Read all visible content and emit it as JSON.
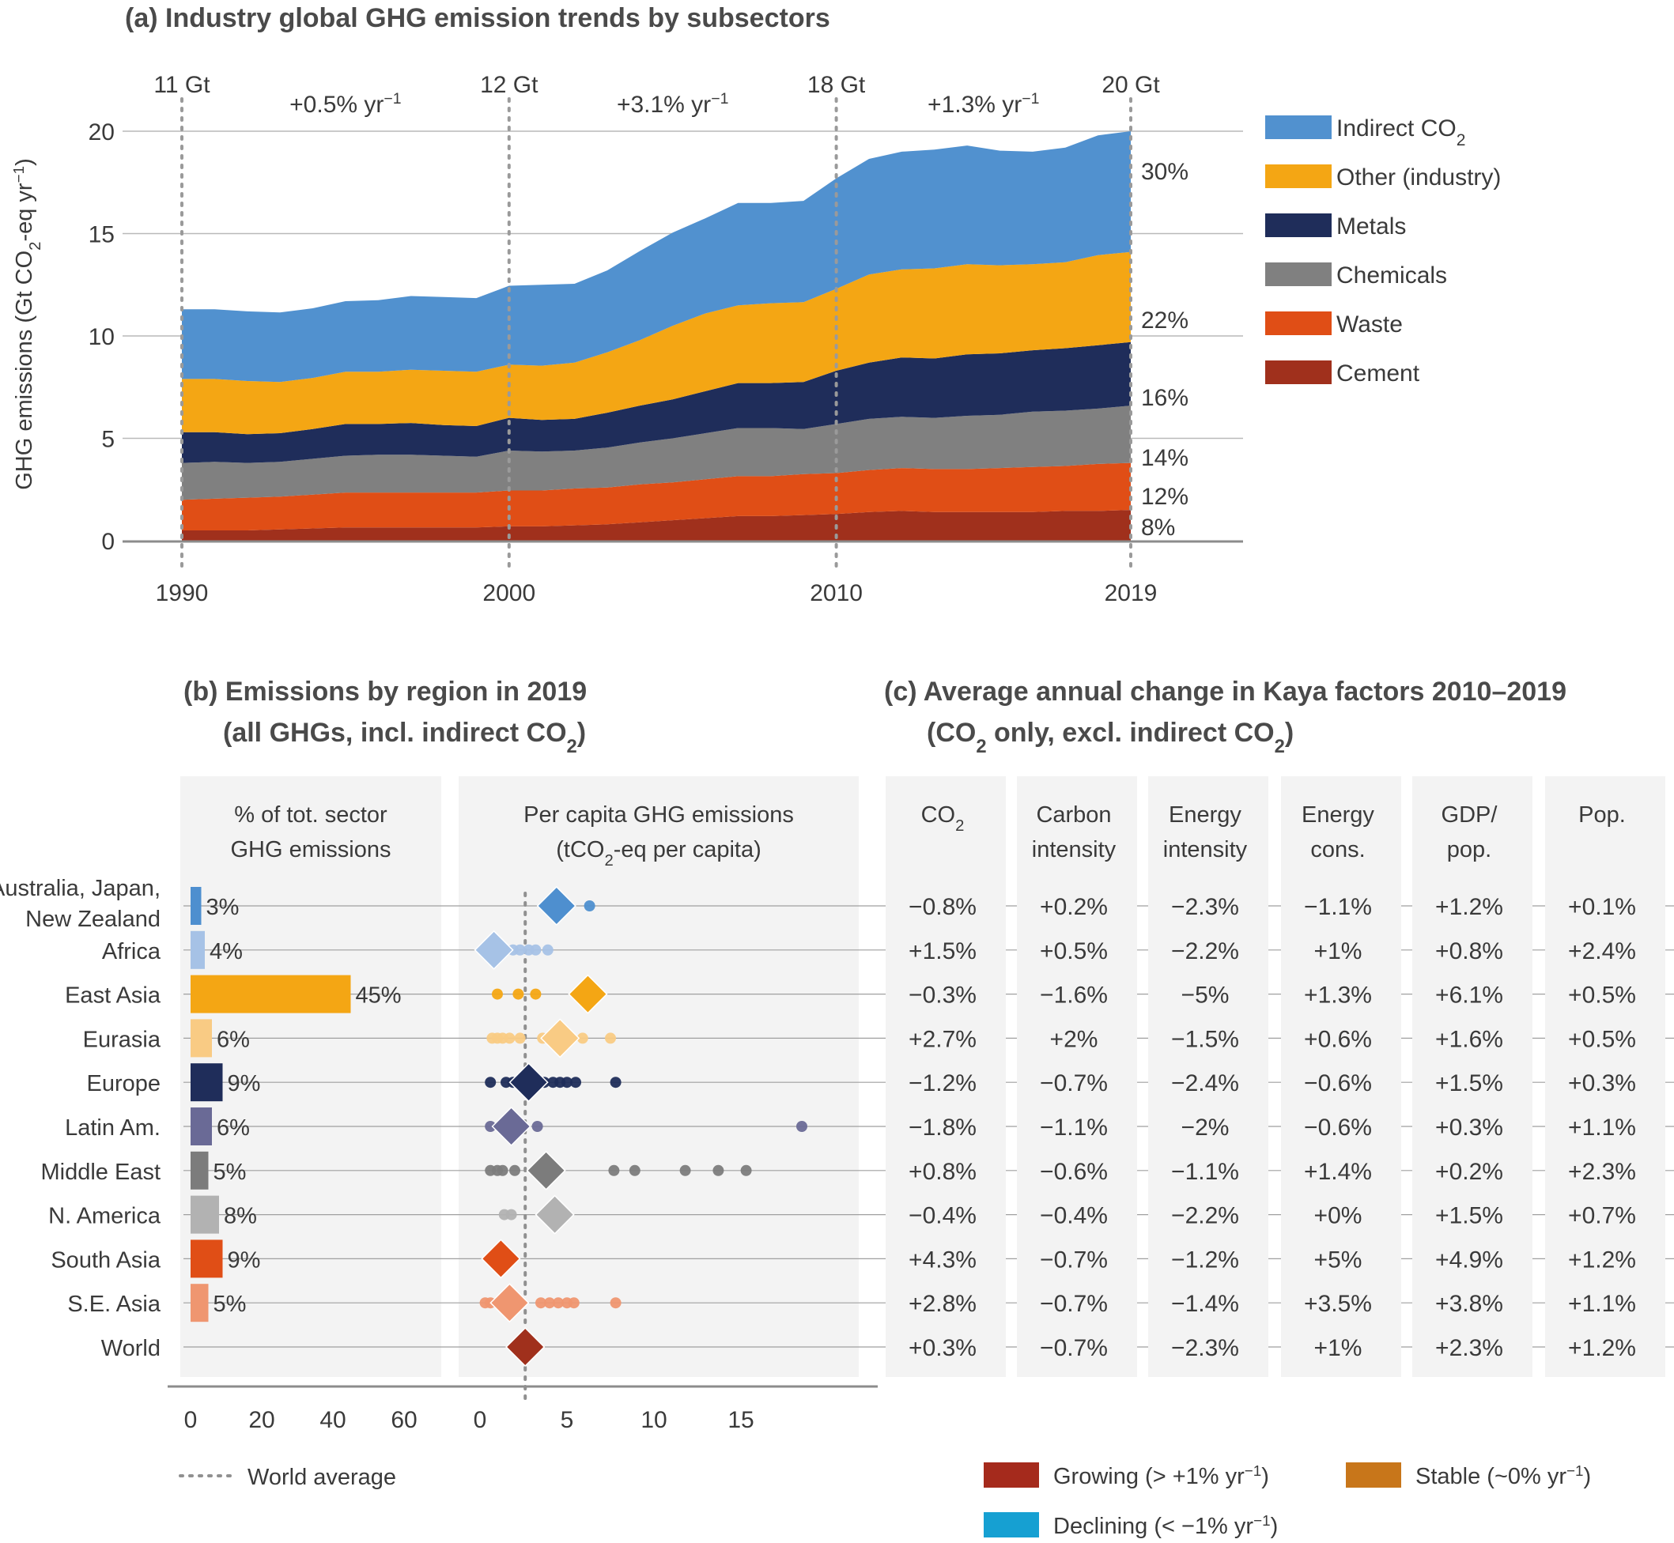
{
  "chart_data": [
    {
      "type": "area",
      "title": "(a) Industry global GHG emission trends by subsectors",
      "ylabel": "GHG emissions (Gt CO₂-eq yr⁻¹)",
      "xlabel": "",
      "ylim": [
        0,
        20
      ],
      "xlim": [
        1990,
        2019
      ],
      "yticks": [
        "0",
        "5",
        "10",
        "15",
        "20"
      ],
      "xticks": [
        "1990",
        "2000",
        "2010",
        "2019"
      ],
      "x": [
        1990,
        1991,
        1992,
        1993,
        1994,
        1995,
        1996,
        1997,
        1998,
        1999,
        2000,
        2001,
        2002,
        2003,
        2004,
        2005,
        2006,
        2007,
        2008,
        2009,
        2010,
        2011,
        2012,
        2013,
        2014,
        2015,
        2016,
        2017,
        2018,
        2019
      ],
      "series": [
        {
          "name": "Cement",
          "color": "#a0301c",
          "values": [
            0.5,
            0.5,
            0.5,
            0.55,
            0.6,
            0.65,
            0.65,
            0.65,
            0.65,
            0.65,
            0.7,
            0.7,
            0.75,
            0.8,
            0.9,
            1.0,
            1.1,
            1.2,
            1.2,
            1.25,
            1.3,
            1.4,
            1.45,
            1.4,
            1.4,
            1.4,
            1.4,
            1.45,
            1.45,
            1.5
          ]
        },
        {
          "name": "Waste",
          "color": "#e04e16",
          "values": [
            1.5,
            1.55,
            1.6,
            1.6,
            1.65,
            1.7,
            1.7,
            1.7,
            1.7,
            1.7,
            1.75,
            1.75,
            1.8,
            1.8,
            1.85,
            1.85,
            1.9,
            1.95,
            1.95,
            2.0,
            2.0,
            2.05,
            2.1,
            2.1,
            2.1,
            2.15,
            2.2,
            2.2,
            2.3,
            2.3
          ]
        },
        {
          "name": "Chemicals",
          "color": "#808080",
          "values": [
            1.8,
            1.8,
            1.7,
            1.7,
            1.75,
            1.8,
            1.85,
            1.85,
            1.8,
            1.75,
            1.95,
            1.9,
            1.85,
            1.95,
            2.05,
            2.15,
            2.25,
            2.35,
            2.35,
            2.2,
            2.4,
            2.5,
            2.5,
            2.5,
            2.6,
            2.6,
            2.7,
            2.7,
            2.7,
            2.8
          ]
        },
        {
          "name": "Metals",
          "color": "#1f2d5a",
          "values": [
            1.5,
            1.45,
            1.4,
            1.4,
            1.45,
            1.55,
            1.5,
            1.55,
            1.5,
            1.5,
            1.6,
            1.55,
            1.55,
            1.7,
            1.8,
            1.9,
            2.05,
            2.2,
            2.2,
            2.3,
            2.6,
            2.75,
            2.9,
            2.9,
            3.0,
            3.0,
            3.0,
            3.05,
            3.1,
            3.1
          ]
        },
        {
          "name": "Other (industry)",
          "color": "#f4a614",
          "values": [
            2.6,
            2.6,
            2.6,
            2.5,
            2.5,
            2.55,
            2.55,
            2.6,
            2.65,
            2.65,
            2.6,
            2.65,
            2.75,
            2.95,
            3.2,
            3.6,
            3.8,
            3.8,
            3.9,
            3.9,
            4.0,
            4.3,
            4.3,
            4.4,
            4.4,
            4.3,
            4.2,
            4.2,
            4.4,
            4.4
          ]
        },
        {
          "name": "Indirect CO₂",
          "color": "#5191cf",
          "values": [
            3.4,
            3.4,
            3.4,
            3.4,
            3.4,
            3.45,
            3.5,
            3.6,
            3.6,
            3.6,
            3.85,
            3.95,
            3.85,
            4.0,
            4.35,
            4.55,
            4.65,
            5.0,
            4.9,
            4.95,
            5.4,
            5.65,
            5.75,
            5.8,
            5.8,
            5.6,
            5.5,
            5.6,
            5.85,
            5.9
          ]
        }
      ],
      "period_labels": [
        {
          "totals": "11 Gt",
          "growth": "+0.5% yr⁻¹"
        },
        {
          "totals": "12 Gt",
          "growth": "+3.1% yr⁻¹"
        },
        {
          "totals": "18 Gt",
          "growth": "+1.3% yr⁻¹"
        },
        {
          "totals": "20 Gt",
          "growth": ""
        }
      ],
      "share_labels": [
        "30%",
        "22%",
        "16%",
        "14%",
        "12%",
        "8%"
      ],
      "legend": "right"
    },
    {
      "type": "bar",
      "title": "(b) Emissions by region in 2019",
      "subtitle": "(all GHGs, incl. indirect CO₂)",
      "header": "% of tot. sector GHG emissions",
      "xticks": [
        "0",
        "20",
        "40",
        "60"
      ],
      "xlim": [
        0,
        70
      ],
      "categories": [
        "Australia, Japan, New Zealand",
        "Africa",
        "East Asia",
        "Eurasia",
        "Europe",
        "Latin Am.",
        "Middle East",
        "N. America",
        "South Asia",
        "S.E. Asia",
        "World"
      ],
      "values": [
        3,
        4,
        45,
        6,
        9,
        6,
        5,
        8,
        9,
        5,
        null
      ],
      "value_labels": [
        "3%",
        "4%",
        "45%",
        "6%",
        "9%",
        "6%",
        "5%",
        "8%",
        "9%",
        "5%",
        ""
      ],
      "colors": [
        "#4e8fcf",
        "#a6c2e6",
        "#f4a614",
        "#f9cb84",
        "#1f2d5a",
        "#6a6a96",
        "#7c7c7c",
        "#b2b2b2",
        "#e04e16",
        "#ef9670",
        "#a0301c"
      ]
    },
    {
      "type": "scatter",
      "header": "Per capita GHG emissions (tCO₂-eq per capita)",
      "xticks": [
        "0",
        "5",
        "10",
        "15"
      ],
      "xlim": [
        -1,
        18
      ],
      "world_average": 2.6,
      "world_average_label": "World average",
      "series": [
        {
          "region": "Australia, Japan, New Zealand",
          "mean": 4.4,
          "points": [
            4.2,
            6.3
          ]
        },
        {
          "region": "Africa",
          "mean": 0.8,
          "points": [
            0.6,
            1.9,
            2.3,
            2.8,
            3.2,
            3.9
          ]
        },
        {
          "region": "East Asia",
          "mean": 6.2,
          "points": [
            1.0,
            2.2,
            3.2,
            6.8
          ]
        },
        {
          "region": "Eurasia",
          "mean": 4.6,
          "points": [
            0.7,
            1.0,
            1.3,
            1.7,
            2.3,
            3.6,
            5.9,
            7.5
          ]
        },
        {
          "region": "Europe",
          "mean": 2.8,
          "points": [
            0.6,
            1.5,
            1.9,
            2.3,
            3.2,
            3.7,
            4.2,
            4.6,
            5.0,
            5.5,
            7.8
          ]
        },
        {
          "region": "Latin Am.",
          "mean": 1.8,
          "points": [
            0.6,
            3.3,
            18.5
          ]
        },
        {
          "region": "Middle East",
          "mean": 3.8,
          "points": [
            0.6,
            1.0,
            1.3,
            2.0,
            7.7,
            8.9,
            11.8,
            13.7,
            15.3
          ]
        },
        {
          "region": "N. America",
          "mean": 4.3,
          "points": [
            1.4,
            1.8
          ]
        },
        {
          "region": "South Asia",
          "mean": 1.2,
          "points": [
            1.0
          ]
        },
        {
          "region": "S.E. Asia",
          "mean": 1.7,
          "points": [
            0.3,
            0.6,
            1.0,
            3.5,
            4.0,
            4.5,
            5.0,
            5.4,
            7.8
          ]
        },
        {
          "region": "World",
          "mean": 2.6,
          "points": []
        }
      ]
    },
    {
      "type": "table",
      "title": "(c) Average annual change in Kaya factors 2010–2019",
      "subtitle": "(CO₂ only, excl. indirect CO₂)",
      "columns": [
        {
          "line1": "CO₂",
          "line2": ""
        },
        {
          "line1": "Carbon",
          "line2": "intensity"
        },
        {
          "line1": "Energy",
          "line2": "intensity"
        },
        {
          "line1": "Energy",
          "line2": "cons."
        },
        {
          "line1": "GDP/",
          "line2": "pop."
        },
        {
          "line1": "Pop.",
          "line2": ""
        }
      ],
      "rows": [
        [
          {
            "v": "−0.8%",
            "c": "s"
          },
          {
            "v": "+0.2%",
            "c": "s"
          },
          {
            "v": "−2.3%",
            "c": "d"
          },
          {
            "v": "−1.1%",
            "c": "d"
          },
          {
            "v": "+1.2%",
            "c": "g"
          },
          {
            "v": "+0.1%",
            "c": "s"
          }
        ],
        [
          {
            "v": "+1.5%",
            "c": "g"
          },
          {
            "v": "+0.5%",
            "c": "s"
          },
          {
            "v": "−2.2%",
            "c": "d"
          },
          {
            "v": "+1%",
            "c": "s"
          },
          {
            "v": "+0.8%",
            "c": "s"
          },
          {
            "v": "+2.4%",
            "c": "g"
          }
        ],
        [
          {
            "v": "−0.3%",
            "c": "s"
          },
          {
            "v": "−1.6%",
            "c": "d"
          },
          {
            "v": "−5%",
            "c": "d"
          },
          {
            "v": "+1.3%",
            "c": "g"
          },
          {
            "v": "+6.1%",
            "c": "g"
          },
          {
            "v": "+0.5%",
            "c": "s"
          }
        ],
        [
          {
            "v": "+2.7%",
            "c": "g"
          },
          {
            "v": "+2%",
            "c": "g"
          },
          {
            "v": "−1.5%",
            "c": "d"
          },
          {
            "v": "+0.6%",
            "c": "s"
          },
          {
            "v": "+1.6%",
            "c": "g"
          },
          {
            "v": "+0.5%",
            "c": "s"
          }
        ],
        [
          {
            "v": "−1.2%",
            "c": "d"
          },
          {
            "v": "−0.7%",
            "c": "s"
          },
          {
            "v": "−2.4%",
            "c": "d"
          },
          {
            "v": "−0.6%",
            "c": "s"
          },
          {
            "v": "+1.5%",
            "c": "g"
          },
          {
            "v": "+0.3%",
            "c": "s"
          }
        ],
        [
          {
            "v": "−1.8%",
            "c": "d"
          },
          {
            "v": "−1.1%",
            "c": "d"
          },
          {
            "v": "−2%",
            "c": "d"
          },
          {
            "v": "−0.6%",
            "c": "s"
          },
          {
            "v": "+0.3%",
            "c": "s"
          },
          {
            "v": "+1.1%",
            "c": "g"
          }
        ],
        [
          {
            "v": "+0.8%",
            "c": "s"
          },
          {
            "v": "−0.6%",
            "c": "s"
          },
          {
            "v": "−1.1%",
            "c": "d"
          },
          {
            "v": "+1.4%",
            "c": "g"
          },
          {
            "v": "+0.2%",
            "c": "s"
          },
          {
            "v": "+2.3%",
            "c": "g"
          }
        ],
        [
          {
            "v": "−0.4%",
            "c": "s"
          },
          {
            "v": "−0.4%",
            "c": "s"
          },
          {
            "v": "−2.2%",
            "c": "d"
          },
          {
            "v": "+0%",
            "c": "s"
          },
          {
            "v": "+1.5%",
            "c": "g"
          },
          {
            "v": "+0.7%",
            "c": "s"
          }
        ],
        [
          {
            "v": "+4.3%",
            "c": "g"
          },
          {
            "v": "−0.7%",
            "c": "s"
          },
          {
            "v": "−1.2%",
            "c": "d"
          },
          {
            "v": "+5%",
            "c": "g"
          },
          {
            "v": "+4.9%",
            "c": "g"
          },
          {
            "v": "+1.2%",
            "c": "g"
          }
        ],
        [
          {
            "v": "+2.8%",
            "c": "g"
          },
          {
            "v": "−0.7%",
            "c": "s"
          },
          {
            "v": "−1.4%",
            "c": "d"
          },
          {
            "v": "+3.5%",
            "c": "g"
          },
          {
            "v": "+3.8%",
            "c": "g"
          },
          {
            "v": "+1.1%",
            "c": "g"
          }
        ],
        [
          {
            "v": "+0.3%",
            "c": "s"
          },
          {
            "v": "−0.7%",
            "c": "s"
          },
          {
            "v": "−2.3%",
            "c": "d"
          },
          {
            "v": "+1%",
            "c": "g"
          },
          {
            "v": "+2.3%",
            "c": "g"
          },
          {
            "v": "+1.2%",
            "c": "g"
          }
        ]
      ],
      "legend": [
        {
          "key": "g",
          "label": "Growing (> +1% yr⁻¹)",
          "color": "#a52a1c"
        },
        {
          "key": "s",
          "label": "Stable (~0% yr⁻¹)",
          "color": "#c8761a"
        },
        {
          "key": "d",
          "label": "Declining (< −1% yr⁻¹)",
          "color": "#16a0d2"
        }
      ],
      "text_colors": {
        "g": "#a52a1c",
        "s": "#c8761a",
        "d": "#1fa0cf"
      }
    }
  ]
}
